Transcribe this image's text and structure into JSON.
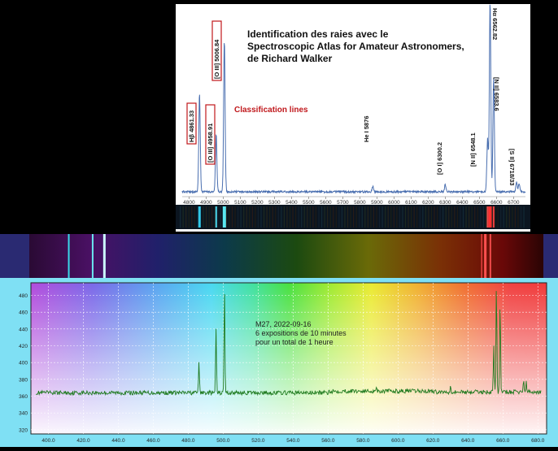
{
  "top_panel": {
    "title_lines": [
      "Identification des raies avec le",
      "Spectroscopic Atlas for Amateur Astronomers,",
      "de Richard Walker"
    ],
    "classification_label": "Classification lines",
    "x_ticks": [
      "4800",
      "4900",
      "5000",
      "5100",
      "5200",
      "5300",
      "5400",
      "5500",
      "5600",
      "5700",
      "5800",
      "5900",
      "6000",
      "6100",
      "6200",
      "6300",
      "6400",
      "6500",
      "6600",
      "6700"
    ],
    "line_labels": [
      {
        "text": "Hβ 4861.33",
        "boxed": true
      },
      {
        "text": "[O III] 4958.91",
        "boxed": true
      },
      {
        "text": "[O III] 5006.84",
        "boxed": true
      },
      {
        "text": "He I 5876",
        "boxed": false
      },
      {
        "text": "[O I] 6300.2",
        "boxed": false
      },
      {
        "text": "[N II] 6548.1",
        "boxed": false
      },
      {
        "text": "Hα 6562.82",
        "boxed": false
      },
      {
        "text": "[N II] 6583.6",
        "boxed": false
      },
      {
        "text": "[S II] 6718/33",
        "boxed": false
      }
    ],
    "colors": {
      "box": "#c0181c",
      "label": "#c0181c",
      "curve": "#4a6fb0"
    }
  },
  "bottom_panel": {
    "annotation_lines": [
      "M27, 2022-09-16",
      "6 expositions de 10 minutes",
      "pour un total de 1 heure"
    ],
    "colors": {
      "curve": "#1f7a1f"
    }
  },
  "chart_data": [
    {
      "type": "line",
      "xlim": [
        4760,
        6770
      ],
      "x_unit": "angstrom",
      "peaks": [
        {
          "x": 4861.33,
          "height": 0.52
        },
        {
          "x": 4958.91,
          "height": 0.3
        },
        {
          "x": 5006.84,
          "height": 0.8
        },
        {
          "x": 5876,
          "height": 0.03
        },
        {
          "x": 6300.2,
          "height": 0.04
        },
        {
          "x": 6548.1,
          "height": 0.28
        },
        {
          "x": 6562.82,
          "height": 1.0
        },
        {
          "x": 6583.6,
          "height": 0.6
        },
        {
          "x": 6718,
          "height": 0.05
        },
        {
          "x": 6733,
          "height": 0.04
        }
      ]
    },
    {
      "type": "line",
      "xlim": [
        390,
        685
      ],
      "ylim": [
        315,
        495
      ],
      "x_ticks": [
        "400.0",
        "420.0",
        "440.0",
        "460.0",
        "480.0",
        "500.0",
        "520.0",
        "540.0",
        "560.0",
        "580.0",
        "600.0",
        "620.0",
        "640.0",
        "660.0",
        "680.0"
      ],
      "y_ticks": [
        "320",
        "340",
        "360",
        "380",
        "400",
        "420",
        "440",
        "460",
        "480"
      ],
      "baseline": 364,
      "peaks": [
        {
          "x": 486.1,
          "y": 402
        },
        {
          "x": 495.9,
          "y": 440
        },
        {
          "x": 500.7,
          "y": 490
        },
        {
          "x": 587.6,
          "y": 370
        },
        {
          "x": 630.0,
          "y": 372
        },
        {
          "x": 654.8,
          "y": 420
        },
        {
          "x": 656.3,
          "y": 492
        },
        {
          "x": 658.4,
          "y": 470
        },
        {
          "x": 671.8,
          "y": 378
        },
        {
          "x": 673.3,
          "y": 376
        }
      ]
    }
  ]
}
